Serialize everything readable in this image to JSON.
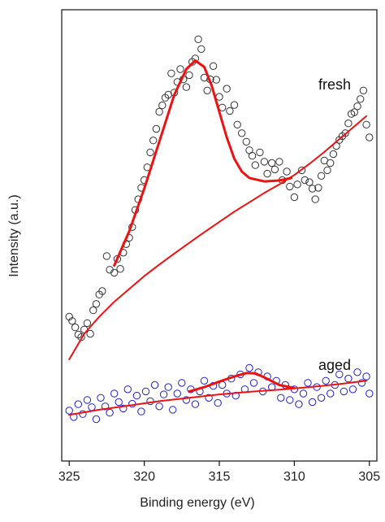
{
  "chart_data": {
    "type": "scatter",
    "xlabel": "Binding energy (eV)",
    "ylabel": "Intensity (a.u.)",
    "xlim": [
      325.5,
      304.5
    ],
    "x_reversed": true,
    "ylim": [
      0,
      100
    ],
    "y_ticks_shown": false,
    "xticks": [
      325,
      320,
      315,
      310,
      305
    ],
    "grid": false,
    "legend": "none",
    "colors": {
      "fresh": "#333333",
      "aged": "#1f1fd6",
      "fit": "#ee1111"
    },
    "series": [
      {
        "name": "fresh",
        "marker": "open-circle",
        "points": [
          [
            325,
            30.0
          ],
          [
            324.8,
            29.0
          ],
          [
            324.6,
            27.5
          ],
          [
            324.4,
            25.8
          ],
          [
            324.2,
            25.2
          ],
          [
            324.0,
            27.0
          ],
          [
            323.8,
            28.5
          ],
          [
            323.6,
            26.0
          ],
          [
            323.4,
            31.5
          ],
          [
            323.2,
            33.0
          ],
          [
            323.0,
            35.2
          ],
          [
            322.8,
            36.0
          ],
          [
            322.5,
            44.2
          ],
          [
            322.3,
            41.0
          ],
          [
            322.0,
            40.3
          ],
          [
            321.8,
            43.5
          ],
          [
            321.6,
            41.2
          ],
          [
            321.4,
            45.0
          ],
          [
            321.2,
            47.0
          ],
          [
            321.0,
            48.5
          ],
          [
            320.8,
            51.0
          ],
          [
            320.6,
            55.0
          ],
          [
            320.4,
            57.5
          ],
          [
            320.2,
            60.2
          ],
          [
            320.0,
            62.0
          ],
          [
            319.8,
            65.0
          ],
          [
            319.6,
            68.5
          ],
          [
            319.4,
            71.3
          ],
          [
            319.2,
            74.0
          ],
          [
            319.0,
            78.0
          ],
          [
            318.8,
            79.5
          ],
          [
            318.6,
            81.3
          ],
          [
            318.4,
            82.0
          ],
          [
            318.2,
            87.0
          ],
          [
            318.0,
            82.5
          ],
          [
            317.8,
            85.0
          ],
          [
            317.6,
            88.0
          ],
          [
            317.4,
            85.6
          ],
          [
            317.2,
            83.8
          ],
          [
            317.0,
            86.6
          ],
          [
            316.8,
            89.7
          ],
          [
            316.6,
            90.5
          ],
          [
            316.4,
            95.0
          ],
          [
            316.2,
            92.7
          ],
          [
            316.0,
            86.0
          ],
          [
            315.8,
            83.0
          ],
          [
            315.6,
            85.6
          ],
          [
            315.4,
            88.7
          ],
          [
            315.2,
            85.5
          ],
          [
            315.0,
            81.5
          ],
          [
            314.8,
            79.0
          ],
          [
            314.5,
            83.4
          ],
          [
            314.3,
            78.2
          ],
          [
            314.0,
            79.6
          ],
          [
            313.8,
            75.0
          ],
          [
            313.5,
            73.0
          ],
          [
            313.2,
            71.0
          ],
          [
            313.0,
            69.0
          ],
          [
            312.8,
            67.7
          ],
          [
            312.6,
            65.5
          ],
          [
            312.3,
            68.5
          ],
          [
            312.0,
            66.3
          ],
          [
            311.8,
            63.5
          ],
          [
            311.5,
            66.0
          ],
          [
            311.3,
            64.5
          ],
          [
            311.0,
            66.3
          ],
          [
            310.8,
            62.0
          ],
          [
            310.5,
            64.0
          ],
          [
            310.3,
            60.5
          ],
          [
            310.0,
            58.0
          ],
          [
            309.8,
            61.0
          ],
          [
            309.5,
            64.3
          ],
          [
            309.3,
            62.0
          ],
          [
            309.0,
            61.5
          ],
          [
            308.8,
            60.0
          ],
          [
            308.6,
            57.5
          ],
          [
            308.4,
            60.2
          ],
          [
            308.2,
            63.0
          ],
          [
            308.0,
            66.6
          ],
          [
            307.8,
            64.3
          ],
          [
            307.6,
            66.0
          ],
          [
            307.4,
            68.1
          ],
          [
            307.2,
            70.0
          ],
          [
            307.0,
            71.4
          ],
          [
            306.8,
            72.3
          ],
          [
            306.6,
            73.0
          ],
          [
            306.4,
            75.3
          ],
          [
            306.2,
            77.5
          ],
          [
            306.0,
            77.9
          ],
          [
            305.8,
            79.3
          ],
          [
            305.6,
            81.0
          ],
          [
            305.4,
            83.0
          ],
          [
            305.2,
            75.0
          ],
          [
            305.0,
            72.0
          ]
        ]
      },
      {
        "name": "aged",
        "marker": "open-circle",
        "points": [
          [
            325.0,
            8.0
          ],
          [
            324.7,
            6.5
          ],
          [
            324.4,
            9.5
          ],
          [
            324.1,
            7.2
          ],
          [
            323.8,
            10.5
          ],
          [
            323.5,
            8.8
          ],
          [
            323.2,
            6.0
          ],
          [
            322.9,
            11.0
          ],
          [
            322.6,
            9.0
          ],
          [
            322.3,
            7.5
          ],
          [
            322.0,
            12.0
          ],
          [
            321.7,
            10.0
          ],
          [
            321.4,
            8.5
          ],
          [
            321.1,
            13.0
          ],
          [
            320.8,
            9.6
          ],
          [
            320.5,
            11.5
          ],
          [
            320.2,
            7.8
          ],
          [
            319.9,
            12.5
          ],
          [
            319.6,
            10.2
          ],
          [
            319.3,
            14.0
          ],
          [
            319.0,
            9.0
          ],
          [
            318.7,
            11.8
          ],
          [
            318.4,
            13.5
          ],
          [
            318.1,
            8.2
          ],
          [
            317.8,
            12.0
          ],
          [
            317.5,
            14.5
          ],
          [
            317.2,
            10.5
          ],
          [
            316.9,
            13.0
          ],
          [
            316.6,
            9.5
          ],
          [
            316.3,
            12.5
          ],
          [
            316.0,
            15.0
          ],
          [
            315.7,
            11.0
          ],
          [
            315.4,
            13.8
          ],
          [
            315.1,
            9.8
          ],
          [
            314.8,
            14.0
          ],
          [
            314.5,
            12.0
          ],
          [
            314.2,
            15.5
          ],
          [
            313.9,
            11.5
          ],
          [
            313.6,
            16.5
          ],
          [
            313.3,
            13.0
          ],
          [
            313.0,
            18.0
          ],
          [
            312.7,
            14.5
          ],
          [
            312.4,
            17.0
          ],
          [
            312.1,
            12.5
          ],
          [
            311.8,
            16.0
          ],
          [
            311.5,
            13.5
          ],
          [
            311.2,
            15.0
          ],
          [
            310.9,
            11.0
          ],
          [
            310.6,
            14.0
          ],
          [
            310.3,
            10.5
          ],
          [
            310.0,
            13.0
          ],
          [
            309.7,
            9.5
          ],
          [
            309.4,
            12.0
          ],
          [
            309.1,
            14.5
          ],
          [
            308.8,
            10.0
          ],
          [
            308.5,
            13.5
          ],
          [
            308.2,
            11.0
          ],
          [
            307.9,
            15.0
          ],
          [
            307.6,
            12.0
          ],
          [
            307.3,
            14.0
          ],
          [
            307.0,
            16.5
          ],
          [
            306.7,
            12.5
          ],
          [
            306.4,
            15.5
          ],
          [
            306.1,
            13.0
          ],
          [
            305.8,
            17.0
          ],
          [
            305.5,
            14.5
          ],
          [
            305.2,
            16.0
          ],
          [
            305.0,
            12.0
          ]
        ]
      }
    ],
    "fits": [
      {
        "series": "fresh",
        "kind": "peak",
        "points": [
          [
            322.0,
            42.0
          ],
          [
            321.0,
            50.0
          ],
          [
            320.0,
            60.0
          ],
          [
            319.0,
            71.0
          ],
          [
            318.0,
            82.0
          ],
          [
            317.2,
            88.0
          ],
          [
            316.6,
            90.0
          ],
          [
            316.0,
            88.5
          ],
          [
            315.5,
            84.0
          ],
          [
            315.0,
            78.0
          ],
          [
            314.5,
            72.0
          ],
          [
            314.0,
            67.0
          ],
          [
            313.5,
            64.0
          ],
          [
            313.0,
            62.5
          ],
          [
            312.0,
            61.7
          ],
          [
            311.0,
            61.9
          ],
          [
            310.2,
            62.5
          ]
        ]
      },
      {
        "series": "fresh",
        "kind": "background",
        "points": [
          [
            325.0,
            20.0
          ],
          [
            324.0,
            26.0
          ],
          [
            323.0,
            30.0
          ],
          [
            322.0,
            33.5
          ],
          [
            321.0,
            36.5
          ],
          [
            320.0,
            39.5
          ],
          [
            319.0,
            42.2
          ],
          [
            318.0,
            44.8
          ],
          [
            317.0,
            47.3
          ],
          [
            316.0,
            49.8
          ],
          [
            315.0,
            52.2
          ],
          [
            314.0,
            54.6
          ],
          [
            313.0,
            56.8
          ],
          [
            312.0,
            59.0
          ],
          [
            311.0,
            61.0
          ],
          [
            310.0,
            63.2
          ],
          [
            309.0,
            65.8
          ],
          [
            308.0,
            68.6
          ],
          [
            307.0,
            71.6
          ],
          [
            306.0,
            74.6
          ],
          [
            305.2,
            77.0
          ]
        ]
      },
      {
        "series": "aged",
        "kind": "background",
        "points": [
          [
            325.0,
            7.0
          ],
          [
            323.0,
            8.2
          ],
          [
            321.0,
            9.2
          ],
          [
            319.0,
            10.2
          ],
          [
            317.0,
            11.0
          ],
          [
            315.0,
            11.8
          ],
          [
            313.0,
            12.4
          ],
          [
            311.0,
            12.9
          ],
          [
            309.0,
            13.5
          ],
          [
            307.0,
            14.2
          ],
          [
            305.2,
            15.0
          ]
        ]
      },
      {
        "series": "aged",
        "kind": "peak",
        "points": [
          [
            317.0,
            12.5
          ],
          [
            316.0,
            13.5
          ],
          [
            315.0,
            14.8
          ],
          [
            314.0,
            16.0
          ],
          [
            313.2,
            16.8
          ],
          [
            312.6,
            16.7
          ],
          [
            312.0,
            15.8
          ],
          [
            311.0,
            14.0
          ],
          [
            310.0,
            13.3
          ]
        ]
      }
    ]
  },
  "labels": {
    "fresh": "fresh",
    "aged": "aged"
  }
}
